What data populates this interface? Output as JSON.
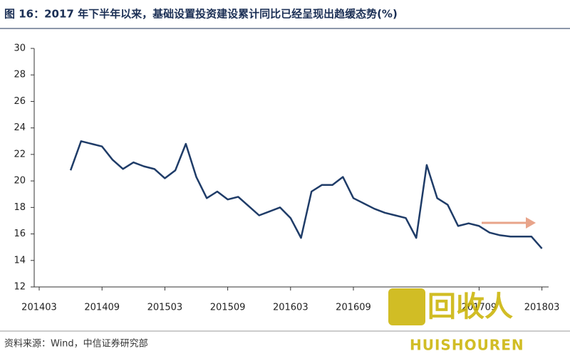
{
  "chart_data": {
    "type": "line",
    "title": "图 16：2017 年下半年以来，基础设置投资建设累计同比已经呈现出趋缓态势(%)",
    "source": "资料来源：Wind，中信证券研究部",
    "watermark": [
      "回收人",
      "HUISHOUREN"
    ],
    "categories": [
      "201403",
      null,
      null,
      null,
      null,
      null,
      "201409",
      null,
      null,
      null,
      null,
      null,
      "201503",
      null,
      null,
      null,
      null,
      null,
      "201509",
      null,
      null,
      null,
      null,
      null,
      "201603",
      null,
      null,
      null,
      null,
      null,
      "201609",
      null,
      null,
      null,
      null,
      null,
      null,
      null,
      null,
      null,
      null,
      null,
      "201709",
      null,
      null,
      null,
      null,
      null,
      "201803"
    ],
    "series": [
      {
        "color": "#1f3c68",
        "values": [
          null,
          null,
          null,
          20.8,
          23.0,
          22.8,
          22.6,
          21.6,
          20.9,
          21.4,
          21.1,
          20.9,
          20.2,
          20.8,
          22.8,
          20.3,
          18.7,
          19.2,
          18.6,
          18.8,
          18.1,
          17.4,
          17.7,
          18.0,
          17.2,
          15.7,
          19.2,
          19.7,
          19.7,
          20.3,
          18.7,
          18.3,
          17.9,
          17.6,
          17.4,
          17.2,
          15.7,
          21.2,
          18.7,
          18.2,
          16.6,
          16.8,
          16.6,
          16.1,
          15.9,
          15.8,
          15.8,
          15.8,
          14.9
        ]
      }
    ],
    "ylim": [
      12,
      30
    ],
    "yticks": [
      12,
      14,
      16,
      18,
      20,
      22,
      24,
      26,
      28,
      30
    ]
  }
}
